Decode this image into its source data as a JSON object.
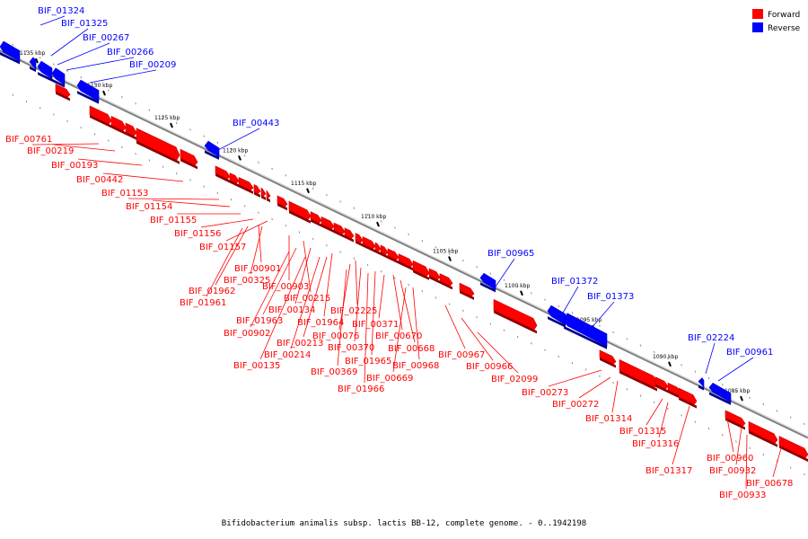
{
  "colors": {
    "forward": "#ff0000",
    "reverse": "#0000ff",
    "backbone": "#7f7f7f"
  },
  "legend": {
    "forward": "Forward",
    "reverse": "Reverse"
  },
  "caption": "Bifidobacterium animalis subsp. lactis BB-12, complete genome. - 0..1942198",
  "ticks": [
    "1135 kbp",
    "1130 kbp",
    "1125 kbp",
    "1120 kbp",
    "1115 kbp",
    "1110 kbp",
    "1105 kbp",
    "1100 kbp",
    "1095 kbp",
    "1090 kbp",
    "1085 kbp"
  ],
  "genes": [
    {
      "name": "BIF_01324",
      "strand": "reverse"
    },
    {
      "name": "BIF_01325",
      "strand": "reverse"
    },
    {
      "name": "BIF_00267",
      "strand": "reverse"
    },
    {
      "name": "BIF_00266",
      "strand": "reverse"
    },
    {
      "name": "BIF_00209",
      "strand": "reverse"
    },
    {
      "name": "BIF_00443",
      "strand": "reverse"
    },
    {
      "name": "BIF_00761",
      "strand": "forward"
    },
    {
      "name": "BIF_00219",
      "strand": "forward"
    },
    {
      "name": "BIF_00193",
      "strand": "forward"
    },
    {
      "name": "BIF_00442",
      "strand": "forward"
    },
    {
      "name": "BIF_01153",
      "strand": "forward"
    },
    {
      "name": "BIF_01154",
      "strand": "forward"
    },
    {
      "name": "BIF_01155",
      "strand": "forward"
    },
    {
      "name": "BIF_01156",
      "strand": "forward"
    },
    {
      "name": "BIF_01157",
      "strand": "forward"
    },
    {
      "name": "BIF_00901",
      "strand": "forward"
    },
    {
      "name": "BIF_00325",
      "strand": "forward"
    },
    {
      "name": "BIF_01962",
      "strand": "forward"
    },
    {
      "name": "BIF_01961",
      "strand": "forward"
    },
    {
      "name": "BIF_00903",
      "strand": "forward"
    },
    {
      "name": "BIF_00215",
      "strand": "forward"
    },
    {
      "name": "BIF_00134",
      "strand": "forward"
    },
    {
      "name": "BIF_01963",
      "strand": "forward"
    },
    {
      "name": "BIF_00902",
      "strand": "forward"
    },
    {
      "name": "BIF_01964",
      "strand": "forward"
    },
    {
      "name": "BIF_00213",
      "strand": "forward"
    },
    {
      "name": "BIF_00214",
      "strand": "forward"
    },
    {
      "name": "BIF_00135",
      "strand": "forward"
    },
    {
      "name": "BIF_02225",
      "strand": "forward"
    },
    {
      "name": "BIF_00076",
      "strand": "forward"
    },
    {
      "name": "BIF_00370",
      "strand": "forward"
    },
    {
      "name": "BIF_00369",
      "strand": "forward"
    },
    {
      "name": "BIF_01965",
      "strand": "forward"
    },
    {
      "name": "BIF_01966",
      "strand": "forward"
    },
    {
      "name": "BIF_00371",
      "strand": "forward"
    },
    {
      "name": "BIF_00670",
      "strand": "forward"
    },
    {
      "name": "BIF_00668",
      "strand": "forward"
    },
    {
      "name": "BIF_00968",
      "strand": "forward"
    },
    {
      "name": "BIF_00669",
      "strand": "forward"
    },
    {
      "name": "BIF_00965",
      "strand": "reverse"
    },
    {
      "name": "BIF_00967",
      "strand": "forward"
    },
    {
      "name": "BIF_00966",
      "strand": "forward"
    },
    {
      "name": "BIF_02099",
      "strand": "forward"
    },
    {
      "name": "BIF_01372",
      "strand": "reverse"
    },
    {
      "name": "BIF_01373",
      "strand": "reverse"
    },
    {
      "name": "BIF_00273",
      "strand": "forward"
    },
    {
      "name": "BIF_00272",
      "strand": "forward"
    },
    {
      "name": "BIF_01314",
      "strand": "forward"
    },
    {
      "name": "BIF_02224",
      "strand": "reverse"
    },
    {
      "name": "BIF_00961",
      "strand": "reverse"
    },
    {
      "name": "BIF_01315",
      "strand": "forward"
    },
    {
      "name": "BIF_01316",
      "strand": "forward"
    },
    {
      "name": "BIF_01317",
      "strand": "forward"
    },
    {
      "name": "BIF_00960",
      "strand": "forward"
    },
    {
      "name": "BIF_00932",
      "strand": "forward"
    },
    {
      "name": "BIF_00933",
      "strand": "forward"
    },
    {
      "name": "BIF_00678",
      "strand": "forward"
    }
  ]
}
